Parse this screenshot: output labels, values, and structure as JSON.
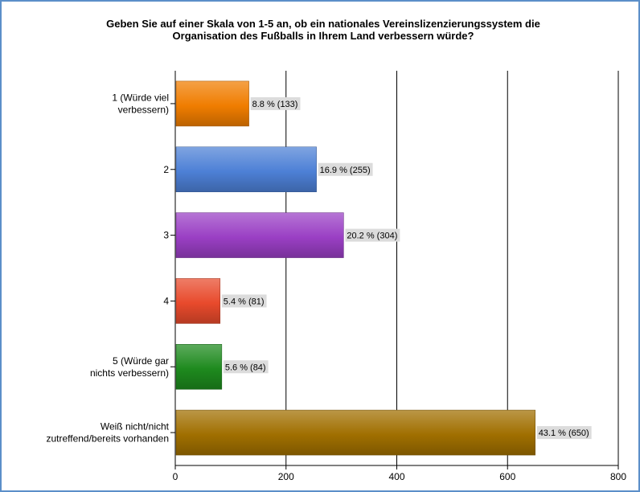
{
  "chart_data": {
    "type": "bar",
    "orientation": "horizontal",
    "title": "Geben Sie auf einer Skala von 1-5 an, ob ein nationales Vereinslizenzierungssystem die Organisation des Fußballs in Ihrem Land verbessern würde?",
    "title_lines": [
      "Geben Sie auf einer Skala von 1-5 an, ob ein nationales Vereinslizenzierungssystem die",
      "Organisation des Fußballs in Ihrem Land verbessern würde?"
    ],
    "categories": [
      [
        "1 (Würde viel",
        "verbessern)"
      ],
      [
        "2"
      ],
      [
        "3"
      ],
      [
        "4"
      ],
      [
        "5 (Würde gar",
        "nichts verbessern)"
      ],
      [
        "Weiß nicht/nicht",
        "zutreffend/bereits vorhanden"
      ]
    ],
    "values": [
      133,
      255,
      304,
      81,
      84,
      650
    ],
    "data_labels": [
      "8.8 % (133)",
      "16.9 % (255)",
      "20.2 % (304)",
      "5.4 % (81)",
      "5.6 % (84)",
      "43.1 % (650)"
    ],
    "colors": [
      "#f07d00",
      "#4d80d6",
      "#9a3fc4",
      "#e84a2c",
      "#1e8a1e",
      "#a06f00"
    ],
    "xlim": [
      0,
      800
    ],
    "xticks": [
      0,
      200,
      400,
      600,
      800
    ],
    "xlabel": "",
    "ylabel": "",
    "grid": true
  }
}
